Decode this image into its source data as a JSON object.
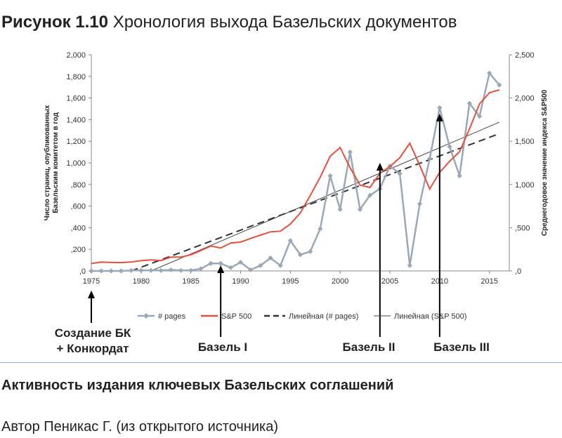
{
  "figure": {
    "number": "Рисунок 1.10",
    "title": "Хронология выхода Базельских документов"
  },
  "caption": "Активность издания ключевых Базельских соглашений",
  "author": "Автор Пеникас Г. (из открытого источника)",
  "chart_data": {
    "type": "line",
    "x": [
      1975,
      1976,
      1977,
      1978,
      1979,
      1980,
      1981,
      1982,
      1983,
      1984,
      1985,
      1986,
      1987,
      1988,
      1989,
      1990,
      1991,
      1992,
      1993,
      1994,
      1995,
      1996,
      1997,
      1998,
      1999,
      2000,
      2001,
      2002,
      2003,
      2004,
      2005,
      2006,
      2007,
      2008,
      2009,
      2010,
      2011,
      2012,
      2013,
      2014,
      2015,
      2016
    ],
    "xticks": [
      "1975",
      "1980",
      "1985",
      "1990",
      "1995",
      "2000",
      "2005",
      "2010",
      "2015"
    ],
    "xlim": [
      1975,
      2017
    ],
    "ylabel": "Число страниц, опубликованных Базельским комитетом в год",
    "y2label": "Среднегодовое значение индекса S&P500",
    "ylim": [
      0,
      2000
    ],
    "y2lim": [
      0,
      2500
    ],
    "yticks": [
      ",0",
      ",200",
      ",400",
      ",600",
      ",800",
      "1,000",
      "1,200",
      "1,400",
      "1,600",
      "1,800",
      "2,000"
    ],
    "y2ticks": [
      ",0",
      ",500",
      "1,000",
      "1,500",
      "2,000",
      "2,500"
    ],
    "series": [
      {
        "name": "# pages",
        "axis": "left",
        "color": "#9aa8b8",
        "values": [
          0,
          0,
          0,
          0,
          5,
          5,
          5,
          5,
          10,
          5,
          5,
          20,
          70,
          70,
          30,
          80,
          10,
          50,
          120,
          50,
          280,
          150,
          180,
          390,
          880,
          570,
          1100,
          570,
          700,
          760,
          970,
          900,
          50,
          620,
          1040,
          1510,
          1150,
          880,
          1550,
          1430,
          1830,
          1720
        ]
      },
      {
        "name": "S&P 500",
        "axis": "right",
        "color": "#e8503a",
        "values": [
          86,
          102,
          98,
          96,
          103,
          119,
          128,
          120,
          160,
          160,
          187,
          236,
          287,
          266,
          323,
          334,
          376,
          415,
          452,
          460,
          542,
          671,
          873,
          1085,
          1327,
          1427,
          1194,
          993,
          965,
          1130,
          1207,
          1310,
          1477,
          1220,
          948,
          1140,
          1268,
          1379,
          1643,
          1931,
          2061,
          2094
        ]
      },
      {
        "name": "Линейная (# pages)",
        "axis": "left",
        "color": "#333333",
        "style": "dashed",
        "start": [
          1979,
          0
        ],
        "end": [
          2016,
          1270
        ]
      },
      {
        "name": "Линейная (S&P 500)",
        "axis": "right",
        "color": "#444444",
        "style": "thin",
        "start": [
          1981,
          0
        ],
        "end": [
          2016,
          1720
        ]
      }
    ],
    "annotations": [
      {
        "label_lines": [
          "Создание БК",
          "+ Конкордат"
        ],
        "year": 1975
      },
      {
        "label_lines": [
          "Базель I"
        ],
        "year": 1988
      },
      {
        "label_lines": [
          "Базель II"
        ],
        "year": 2004
      },
      {
        "label_lines": [
          "Базель III"
        ],
        "year": 2010
      }
    ],
    "legend_position": "bottom",
    "grid": false
  }
}
